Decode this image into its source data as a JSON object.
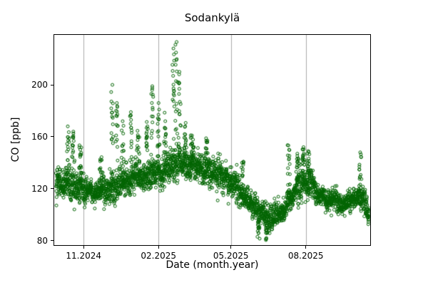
{
  "chart_data": {
    "type": "scatter",
    "title": "Sodankylä",
    "xlabel": "Date (month.year)",
    "ylabel": "CO [ppb]",
    "legend": null,
    "marker": {
      "shape": "open-circle",
      "color": "#006400",
      "radius_px": 2
    },
    "x_axis": {
      "lim_days": [
        0,
        390
      ],
      "ticks": [
        {
          "day": 37,
          "label": "11.2024"
        },
        {
          "day": 129,
          "label": "02.2025"
        },
        {
          "day": 218,
          "label": "05.2025"
        },
        {
          "day": 310,
          "label": "08.2025"
        }
      ],
      "grid": true,
      "grid_color": "#ababab"
    },
    "y_axis": {
      "lim": [
        76,
        239
      ],
      "ticks": [
        80,
        120,
        160,
        200
      ],
      "grid": false
    },
    "series_model": {
      "day_range": [
        3,
        387
      ],
      "points_per_day": 8,
      "day_jitter_std": 3,
      "noise_std_high": 6.5,
      "noise_std_low": 4,
      "winter_threshold": 118,
      "spike_points": 16,
      "seed": 42,
      "trend_day_mean": [
        [
          3,
          127
        ],
        [
          12,
          126
        ],
        [
          20,
          124
        ],
        [
          30,
          121
        ],
        [
          37,
          119
        ],
        [
          48,
          116
        ],
        [
          60,
          118
        ],
        [
          72,
          121
        ],
        [
          82,
          124
        ],
        [
          95,
          128
        ],
        [
          110,
          130
        ],
        [
          122,
          131
        ],
        [
          129,
          132
        ],
        [
          138,
          137
        ],
        [
          150,
          140
        ],
        [
          162,
          139
        ],
        [
          175,
          137
        ],
        [
          188,
          134
        ],
        [
          200,
          132
        ],
        [
          210,
          128
        ],
        [
          218,
          125
        ],
        [
          226,
          120
        ],
        [
          235,
          112
        ],
        [
          245,
          106
        ],
        [
          252,
          102
        ],
        [
          262,
          98
        ],
        [
          272,
          100
        ],
        [
          281,
          104
        ],
        [
          290,
          110
        ],
        [
          297,
          117
        ],
        [
          305,
          126
        ],
        [
          315,
          124
        ],
        [
          322,
          118
        ],
        [
          330,
          113
        ],
        [
          338,
          111
        ],
        [
          345,
          113
        ],
        [
          353,
          109
        ],
        [
          360,
          110
        ],
        [
          368,
          112
        ],
        [
          375,
          115
        ],
        [
          380,
          112
        ],
        [
          387,
          102
        ]
      ],
      "spikes": [
        [
          18,
          168
        ],
        [
          24,
          164
        ],
        [
          33,
          150
        ],
        [
          58,
          142
        ],
        [
          72,
          200
        ],
        [
          78,
          186
        ],
        [
          85,
          172
        ],
        [
          95,
          179
        ],
        [
          104,
          160
        ],
        [
          115,
          168
        ],
        [
          121,
          196
        ],
        [
          129,
          186
        ],
        [
          137,
          172
        ],
        [
          147,
          228
        ],
        [
          151,
          233
        ],
        [
          155,
          210
        ],
        [
          162,
          168
        ],
        [
          170,
          161
        ],
        [
          188,
          157
        ],
        [
          232,
          140
        ],
        [
          252,
          86
        ],
        [
          262,
          82
        ],
        [
          289,
          150
        ],
        [
          300,
          147
        ],
        [
          307,
          152
        ],
        [
          313,
          149
        ],
        [
          377,
          148
        ]
      ]
    }
  }
}
